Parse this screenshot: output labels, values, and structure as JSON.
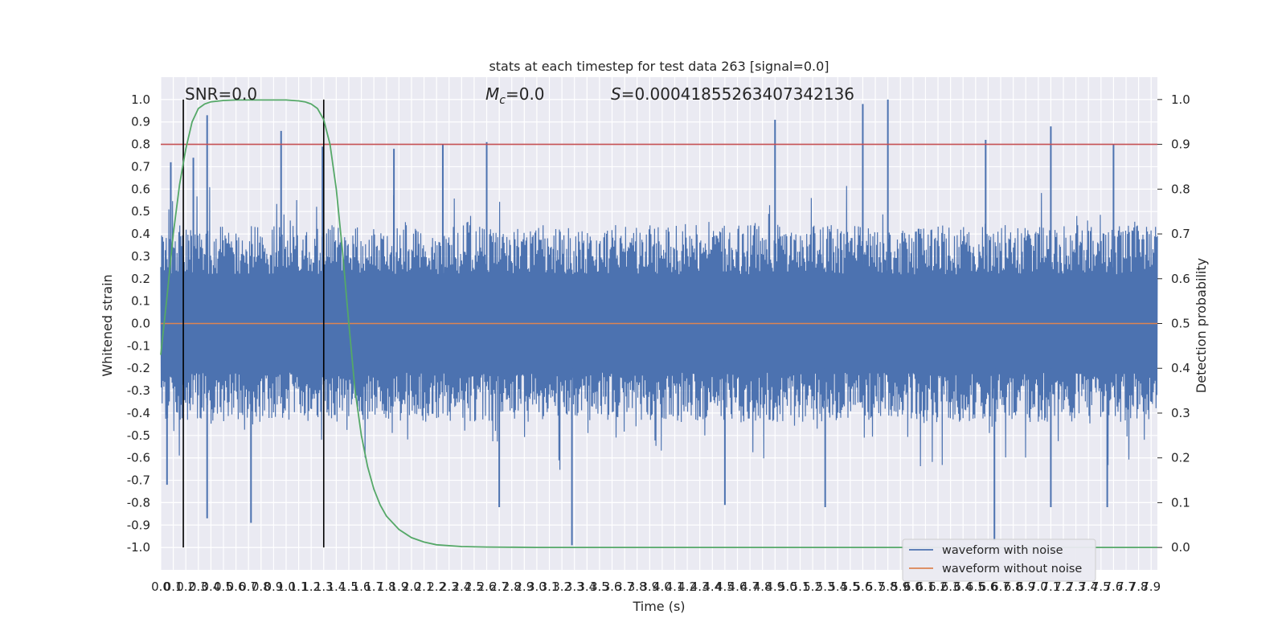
{
  "chart_data": {
    "type": "line",
    "title": "stats at each timestep for test data 263 [signal=0.0]",
    "xlabel": "Time (s)",
    "ylabel": "Whitened strain",
    "y2label": "Detection probability",
    "xlim": [
      0.0,
      7.95
    ],
    "ylim": [
      -1.1,
      1.1
    ],
    "y2lim": [
      -0.05,
      1.05
    ],
    "x_ticks": [
      "0.0",
      "0.1",
      "0.2",
      "0.3",
      "0.4",
      "0.5",
      "0.6",
      "0.7",
      "0.8",
      "0.9",
      "1.0",
      "1.1",
      "1.2",
      "1.3",
      "1.4",
      "1.5",
      "1.6",
      "1.7",
      "1.8",
      "1.9",
      "2.0",
      "2.1",
      "2.2",
      "2.3",
      "2.4",
      "2.5",
      "2.6",
      "2.7",
      "2.8",
      "2.9",
      "3.0",
      "3.1",
      "3.2",
      "3.3",
      "3.4",
      "3.5",
      "3.6",
      "3.7",
      "3.8",
      "3.9",
      "4.0",
      "4.1",
      "4.2",
      "4.3",
      "4.4",
      "4.5",
      "4.6",
      "4.7",
      "4.8",
      "4.9",
      "5.0",
      "5.1",
      "5.2",
      "5.3",
      "5.4",
      "5.5",
      "5.6",
      "5.7",
      "5.8",
      "5.9",
      "6.0",
      "6.1",
      "6.2",
      "6.3",
      "6.4",
      "6.5",
      "6.6",
      "6.7",
      "6.8",
      "6.9",
      "7.0",
      "7.1",
      "7.2",
      "7.3",
      "7.4",
      "7.5",
      "7.6",
      "7.7",
      "7.8",
      "7.9"
    ],
    "y_ticks": [
      "1.0",
      "0.9",
      "0.8",
      "0.7",
      "0.6",
      "0.5",
      "0.4",
      "0.3",
      "0.2",
      "0.1",
      "0.0",
      "-0.1",
      "-0.2",
      "-0.3",
      "-0.4",
      "-0.5",
      "-0.6",
      "-0.7",
      "-0.8",
      "-0.9",
      "-1.0"
    ],
    "y2_ticks": [
      "1.0",
      "0.9",
      "0.8",
      "0.7",
      "0.6",
      "0.5",
      "0.4",
      "0.3",
      "0.2",
      "0.1",
      "0.0"
    ],
    "annotations": {
      "snr": "SNR=0.0",
      "mc_symbol": "M",
      "mc_sub": "c",
      "mc_value": "=0.0",
      "s_symbol": "S",
      "s_value": "=0.00041855263407342136"
    },
    "threshold": 0.8,
    "vertical_lines": [
      0.18,
      1.3
    ],
    "series": [
      {
        "name": "waveform with noise",
        "color": "#4c72b0",
        "envelope_peaks": [
          {
            "x": 0.08,
            "y": 0.72
          },
          {
            "x": 0.26,
            "y": 0.74
          },
          {
            "x": 0.37,
            "y": 0.93
          },
          {
            "x": 0.96,
            "y": 0.86
          },
          {
            "x": 1.29,
            "y": 0.79
          },
          {
            "x": 1.86,
            "y": 0.78
          },
          {
            "x": 2.25,
            "y": 0.8
          },
          {
            "x": 2.6,
            "y": 0.81
          },
          {
            "x": 4.9,
            "y": 0.91
          },
          {
            "x": 5.6,
            "y": 0.98
          },
          {
            "x": 5.8,
            "y": 1.0
          },
          {
            "x": 6.58,
            "y": 0.82
          },
          {
            "x": 7.1,
            "y": 0.88
          },
          {
            "x": 7.6,
            "y": 0.8
          }
        ],
        "envelope_troughs": [
          {
            "x": 0.05,
            "y": -0.72
          },
          {
            "x": 0.37,
            "y": -0.87
          },
          {
            "x": 0.72,
            "y": -0.89
          },
          {
            "x": 2.7,
            "y": -0.82
          },
          {
            "x": 3.28,
            "y": -0.99
          },
          {
            "x": 4.5,
            "y": -0.81
          },
          {
            "x": 5.3,
            "y": -0.82
          },
          {
            "x": 6.65,
            "y": -0.97
          },
          {
            "x": 7.1,
            "y": -0.82
          },
          {
            "x": 7.55,
            "y": -0.82
          }
        ]
      },
      {
        "name": "waveform without noise",
        "color": "#dd8452",
        "values_constant": 0.0
      },
      {
        "name": "",
        "color": "#55a868",
        "axis": "right",
        "x": [
          0.0,
          0.05,
          0.1,
          0.15,
          0.2,
          0.25,
          0.3,
          0.35,
          0.4,
          0.5,
          0.6,
          0.8,
          1.0,
          1.1,
          1.15,
          1.2,
          1.25,
          1.3,
          1.35,
          1.4,
          1.45,
          1.5,
          1.55,
          1.6,
          1.65,
          1.7,
          1.75,
          1.8,
          1.9,
          2.0,
          2.1,
          2.2,
          2.4,
          2.6,
          3.0,
          7.95
        ],
        "values": [
          0.43,
          0.56,
          0.7,
          0.81,
          0.89,
          0.95,
          0.98,
          0.99,
          0.995,
          0.998,
          0.999,
          0.999,
          0.999,
          0.997,
          0.995,
          0.99,
          0.98,
          0.955,
          0.9,
          0.8,
          0.66,
          0.5,
          0.35,
          0.25,
          0.18,
          0.13,
          0.095,
          0.07,
          0.04,
          0.022,
          0.012,
          0.006,
          0.002,
          0.001,
          0.0,
          0.0
        ]
      }
    ],
    "threshold_color": "#c44e52",
    "vline_color": "#000000",
    "legend_position": "lower-right",
    "grid": true
  }
}
